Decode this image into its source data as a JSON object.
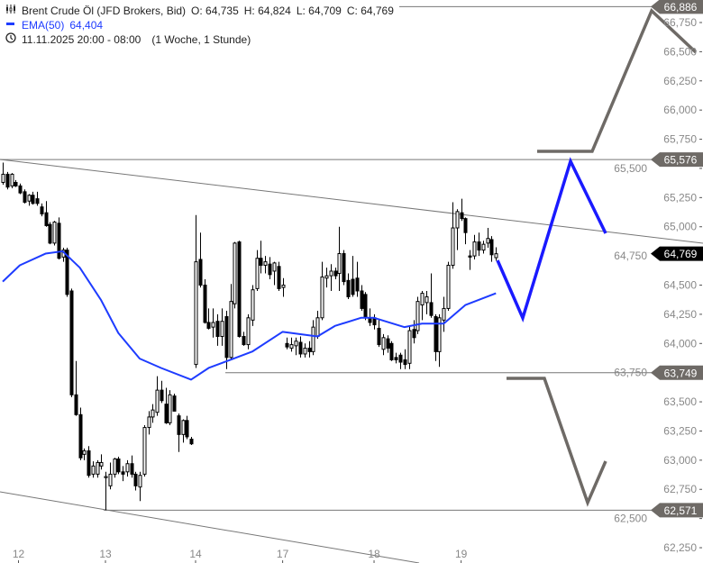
{
  "header": {
    "instrument": "Brent Crude Öl (JFD Brokers, Bid)",
    "open": "O: 64,735",
    "high": "H: 64,824",
    "low": "L: 64,709",
    "close": "C: 64,769",
    "ema_label": "EMA(50)",
    "ema_value": "64,404",
    "time_range": "11.11.2025 20:00 - 08:00",
    "period": "(1 Woche, 1 Stunde)",
    "icons": {
      "instrument": "candlestick-icon",
      "ema": "line-swatch-icon",
      "time": "clock-icon"
    }
  },
  "colors": {
    "up_fill": "#ffffff",
    "down_fill": "#000000",
    "ema": "#1e3cff",
    "level_label": "#6e6a66",
    "current_label": "#000000",
    "projection_grey": "#6e6a66",
    "projection_blue": "#1a1aff"
  },
  "chart_data": {
    "type": "candlestick",
    "title": "Brent Crude Öl (JFD Brokers, Bid)",
    "y_range": [
      62.2,
      66.95
    ],
    "y_ticks": [
      "66,750",
      "66,500",
      "66,250",
      "66,000",
      "65,750",
      "65,500",
      "65,250",
      "65,000",
      "64,750",
      "64,500",
      "64,250",
      "64,000",
      "63,750",
      "63,500",
      "63,250",
      "63,000",
      "62,750",
      "62,500",
      "62,250"
    ],
    "y_tick_values": [
      66.75,
      66.5,
      66.25,
      66.0,
      65.75,
      65.5,
      65.25,
      65.0,
      64.75,
      64.5,
      64.25,
      64.0,
      63.75,
      63.5,
      63.25,
      63.0,
      62.75,
      62.5,
      62.25
    ],
    "x_ticks": [
      "12",
      "13",
      "14",
      "17",
      "18",
      "19"
    ],
    "x_tick_candle_index": [
      2,
      24,
      45,
      65,
      86,
      106
    ],
    "session_break_index": 45,
    "ohlc": [
      [
        65.38,
        65.55,
        65.36,
        65.45
      ],
      [
        65.45,
        65.47,
        65.32,
        65.34
      ],
      [
        65.35,
        65.46,
        65.33,
        65.45
      ],
      [
        65.38,
        65.4,
        65.34,
        65.35
      ],
      [
        65.35,
        65.37,
        65.28,
        65.29
      ],
      [
        65.3,
        65.32,
        65.2,
        65.21
      ],
      [
        65.22,
        65.28,
        65.18,
        65.27
      ],
      [
        65.27,
        65.3,
        65.19,
        65.2
      ],
      [
        65.24,
        65.3,
        65.18,
        65.2
      ],
      [
        65.17,
        65.2,
        65.09,
        65.11
      ],
      [
        65.12,
        65.22,
        65.0,
        65.01
      ],
      [
        65.02,
        65.04,
        64.85,
        64.86
      ],
      [
        64.86,
        65.05,
        64.84,
        65.04
      ],
      [
        65.03,
        65.08,
        64.72,
        64.73
      ],
      [
        64.74,
        64.82,
        64.7,
        64.8
      ],
      [
        64.8,
        64.82,
        64.4,
        64.42
      ],
      [
        64.45,
        64.47,
        63.54,
        63.56
      ],
      [
        63.56,
        63.85,
        63.38,
        63.39
      ],
      [
        63.39,
        63.45,
        63.0,
        63.02
      ],
      [
        63.05,
        63.1,
        63.0,
        63.08
      ],
      [
        63.08,
        63.12,
        62.85,
        62.87
      ],
      [
        62.88,
        62.99,
        62.85,
        62.95
      ],
      [
        62.88,
        63.0,
        62.85,
        62.98
      ],
      [
        62.95,
        63.05,
        62.92,
        62.98
      ],
      [
        62.85,
        62.9,
        62.57,
        62.86
      ],
      [
        62.78,
        62.98,
        62.75,
        62.88
      ],
      [
        62.88,
        63.02,
        62.85,
        63.01
      ],
      [
        63.01,
        63.03,
        62.88,
        62.9
      ],
      [
        62.9,
        62.95,
        62.82,
        62.88
      ],
      [
        62.9,
        63.0,
        62.86,
        62.97
      ],
      [
        62.97,
        63.04,
        62.85,
        62.88
      ],
      [
        62.88,
        62.9,
        62.74,
        62.78
      ],
      [
        62.77,
        62.9,
        62.65,
        62.87
      ],
      [
        62.88,
        63.3,
        62.86,
        63.28
      ],
      [
        63.28,
        63.42,
        63.22,
        63.37
      ],
      [
        63.37,
        63.48,
        63.32,
        63.43
      ],
      [
        63.41,
        63.72,
        63.38,
        63.6
      ],
      [
        63.6,
        63.68,
        63.49,
        63.51
      ],
      [
        63.48,
        63.62,
        63.31,
        63.32
      ],
      [
        63.32,
        63.6,
        63.3,
        63.56
      ],
      [
        63.55,
        63.57,
        63.42,
        63.42
      ],
      [
        63.38,
        63.4,
        63.07,
        63.22
      ],
      [
        63.22,
        63.35,
        63.15,
        63.34
      ],
      [
        63.34,
        63.38,
        63.18,
        63.2
      ],
      [
        63.18,
        63.2,
        63.13,
        63.14
      ],
      [
        63.82,
        65.1,
        63.79,
        64.7
      ],
      [
        64.72,
        64.95,
        64.48,
        64.5
      ],
      [
        64.5,
        64.55,
        64.17,
        64.18
      ],
      [
        64.18,
        64.3,
        64.12,
        64.13
      ],
      [
        64.14,
        64.3,
        64.05,
        64.18
      ],
      [
        64.19,
        64.25,
        63.98,
        64.06
      ],
      [
        64.06,
        64.3,
        63.98,
        64.19
      ],
      [
        64.23,
        64.28,
        63.78,
        63.88
      ],
      [
        63.88,
        64.51,
        63.86,
        64.36
      ],
      [
        64.34,
        64.87,
        64.3,
        64.86
      ],
      [
        64.87,
        64.88,
        64.05,
        64.06
      ],
      [
        64.06,
        64.1,
        63.98,
        63.99
      ],
      [
        63.99,
        64.25,
        63.95,
        64.22
      ],
      [
        64.2,
        64.5,
        64.15,
        64.46
      ],
      [
        64.47,
        64.8,
        64.45,
        64.73
      ],
      [
        64.73,
        64.88,
        64.6,
        64.67
      ],
      [
        64.67,
        64.75,
        64.6,
        64.7
      ],
      [
        64.68,
        64.74,
        64.55,
        64.59
      ],
      [
        64.62,
        64.7,
        64.5,
        64.69
      ],
      [
        64.66,
        64.7,
        64.45,
        64.47
      ],
      [
        64.48,
        64.56,
        64.4,
        64.5
      ],
      [
        64.0,
        64.05,
        63.95,
        63.97
      ],
      [
        63.96,
        64.05,
        63.93,
        63.99
      ],
      [
        63.98,
        64.05,
        63.9,
        64.02
      ],
      [
        64.01,
        64.06,
        63.88,
        63.91
      ],
      [
        63.91,
        64.0,
        63.88,
        63.96
      ],
      [
        63.96,
        64.02,
        63.88,
        63.93
      ],
      [
        63.93,
        64.2,
        63.9,
        64.14
      ],
      [
        64.06,
        64.28,
        64.04,
        64.22
      ],
      [
        64.22,
        64.7,
        64.2,
        64.57
      ],
      [
        64.56,
        64.65,
        64.48,
        64.58
      ],
      [
        64.58,
        64.68,
        64.45,
        64.62
      ],
      [
        64.62,
        64.65,
        64.55,
        64.58
      ],
      [
        64.6,
        65.0,
        64.45,
        64.77
      ],
      [
        64.77,
        64.8,
        64.5,
        64.53
      ],
      [
        64.54,
        64.6,
        64.38,
        64.4
      ],
      [
        64.55,
        64.75,
        64.4,
        64.42
      ],
      [
        64.56,
        64.7,
        64.4,
        64.45
      ],
      [
        64.45,
        64.5,
        64.28,
        64.3
      ],
      [
        64.42,
        64.44,
        64.2,
        64.22
      ],
      [
        64.22,
        64.3,
        64.15,
        64.18
      ],
      [
        64.22,
        64.25,
        64.12,
        64.16
      ],
      [
        64.13,
        64.2,
        63.97,
        63.99
      ],
      [
        63.95,
        64.08,
        63.9,
        64.05
      ],
      [
        64.04,
        64.07,
        63.92,
        63.96
      ],
      [
        64.0,
        64.02,
        63.85,
        63.86
      ],
      [
        63.88,
        63.92,
        63.83,
        63.86
      ],
      [
        63.9,
        63.92,
        63.78,
        63.84
      ],
      [
        63.86,
        63.95,
        63.78,
        63.82
      ],
      [
        63.83,
        64.15,
        63.78,
        64.11
      ],
      [
        64.12,
        64.2,
        64.0,
        64.05
      ],
      [
        64.11,
        64.4,
        64.08,
        64.36
      ],
      [
        64.33,
        64.45,
        64.2,
        64.43
      ],
      [
        64.35,
        64.45,
        64.25,
        64.4
      ],
      [
        64.35,
        64.6,
        64.22,
        64.24
      ],
      [
        64.23,
        64.25,
        63.85,
        63.93
      ],
      [
        63.93,
        64.25,
        63.8,
        64.22
      ],
      [
        64.2,
        64.4,
        64.1,
        64.3
      ],
      [
        64.3,
        64.7,
        64.28,
        64.67
      ],
      [
        64.67,
        65.21,
        64.64,
        64.99
      ],
      [
        64.99,
        65.15,
        64.8,
        65.13
      ],
      [
        65.12,
        65.24,
        65.05,
        65.07
      ],
      [
        65.07,
        65.08,
        64.85,
        64.95
      ],
      [
        64.75,
        64.8,
        64.63,
        64.74
      ],
      [
        64.75,
        64.93,
        64.72,
        64.87
      ],
      [
        64.87,
        64.95,
        64.75,
        64.8
      ],
      [
        64.8,
        64.88,
        64.77,
        64.85
      ],
      [
        64.86,
        64.99,
        64.82,
        64.9
      ],
      [
        64.89,
        64.92,
        64.7,
        64.76
      ],
      [
        64.735,
        64.824,
        64.709,
        64.769
      ]
    ],
    "ema50": [
      [
        0,
        64.53
      ],
      [
        4,
        64.67
      ],
      [
        10,
        64.77
      ],
      [
        14,
        64.79
      ],
      [
        18,
        64.65
      ],
      [
        23,
        64.37
      ],
      [
        27,
        64.09
      ],
      [
        32,
        63.87
      ],
      [
        37,
        63.79
      ],
      [
        44,
        63.69
      ],
      [
        48,
        63.79
      ],
      [
        53,
        63.86
      ],
      [
        58,
        63.93
      ],
      [
        65,
        64.1
      ],
      [
        73,
        64.06
      ],
      [
        77,
        64.15
      ],
      [
        83,
        64.22
      ],
      [
        86,
        64.22
      ],
      [
        93,
        64.14
      ],
      [
        97,
        64.17
      ],
      [
        102,
        64.17
      ],
      [
        107,
        64.33
      ],
      [
        114,
        64.43
      ]
    ],
    "levels": [
      {
        "value": 66.886,
        "label": "66,886"
      },
      {
        "value": 65.576,
        "label": "65,576"
      },
      {
        "value": 63.749,
        "label": "63,749"
      },
      {
        "value": 62.571,
        "label": "62,571"
      }
    ],
    "current_price": {
      "value": 64.769,
      "label": "64,769"
    }
  }
}
